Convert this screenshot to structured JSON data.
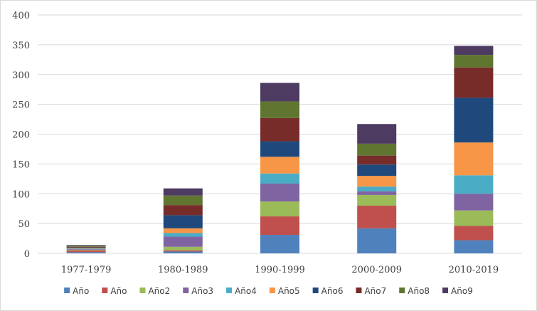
{
  "chart_data": {
    "type": "bar",
    "stacked": true,
    "title": "",
    "xlabel": "",
    "ylabel": "",
    "ylim": [
      0,
      400
    ],
    "yticks": [
      0,
      50,
      100,
      150,
      200,
      250,
      300,
      350,
      400
    ],
    "grid": true,
    "legend": "bottom",
    "categories": [
      "1977-1979",
      "1980-1989",
      "1990-1999",
      "2000-2009",
      "2010-2019"
    ],
    "series": [
      {
        "name": "Año",
        "color": "#4f81bd",
        "values": [
          2,
          3,
          31,
          42,
          22
        ]
      },
      {
        "name": "Año",
        "color": "#c0504d",
        "values": [
          3,
          2,
          31,
          38,
          24
        ]
      },
      {
        "name": "Año2",
        "color": "#9bbb59",
        "values": [
          1,
          6,
          25,
          18,
          26
        ]
      },
      {
        "name": "Año3",
        "color": "#8064a2",
        "values": [
          1,
          17,
          30,
          6,
          28
        ]
      },
      {
        "name": "Año4",
        "color": "#4bacc6",
        "values": [
          1,
          6,
          17,
          8,
          31
        ]
      },
      {
        "name": "Año5",
        "color": "#f79646",
        "values": [
          1,
          8,
          28,
          18,
          55
        ]
      },
      {
        "name": "Año6",
        "color": "#1f497d",
        "values": [
          1,
          22,
          26,
          19,
          75
        ]
      },
      {
        "name": "Año7",
        "color": "#772c2a",
        "values": [
          1,
          17,
          39,
          15,
          51
        ]
      },
      {
        "name": "Año8",
        "color": "#5f7530",
        "values": [
          2,
          16,
          28,
          20,
          21
        ]
      },
      {
        "name": "Año9",
        "color": "#4d3b62",
        "values": [
          1,
          12,
          31,
          33,
          15
        ]
      }
    ]
  },
  "colors": {
    "gridline": "#d9d9d9",
    "axis": "#d9d9d9",
    "text": "#404040"
  }
}
